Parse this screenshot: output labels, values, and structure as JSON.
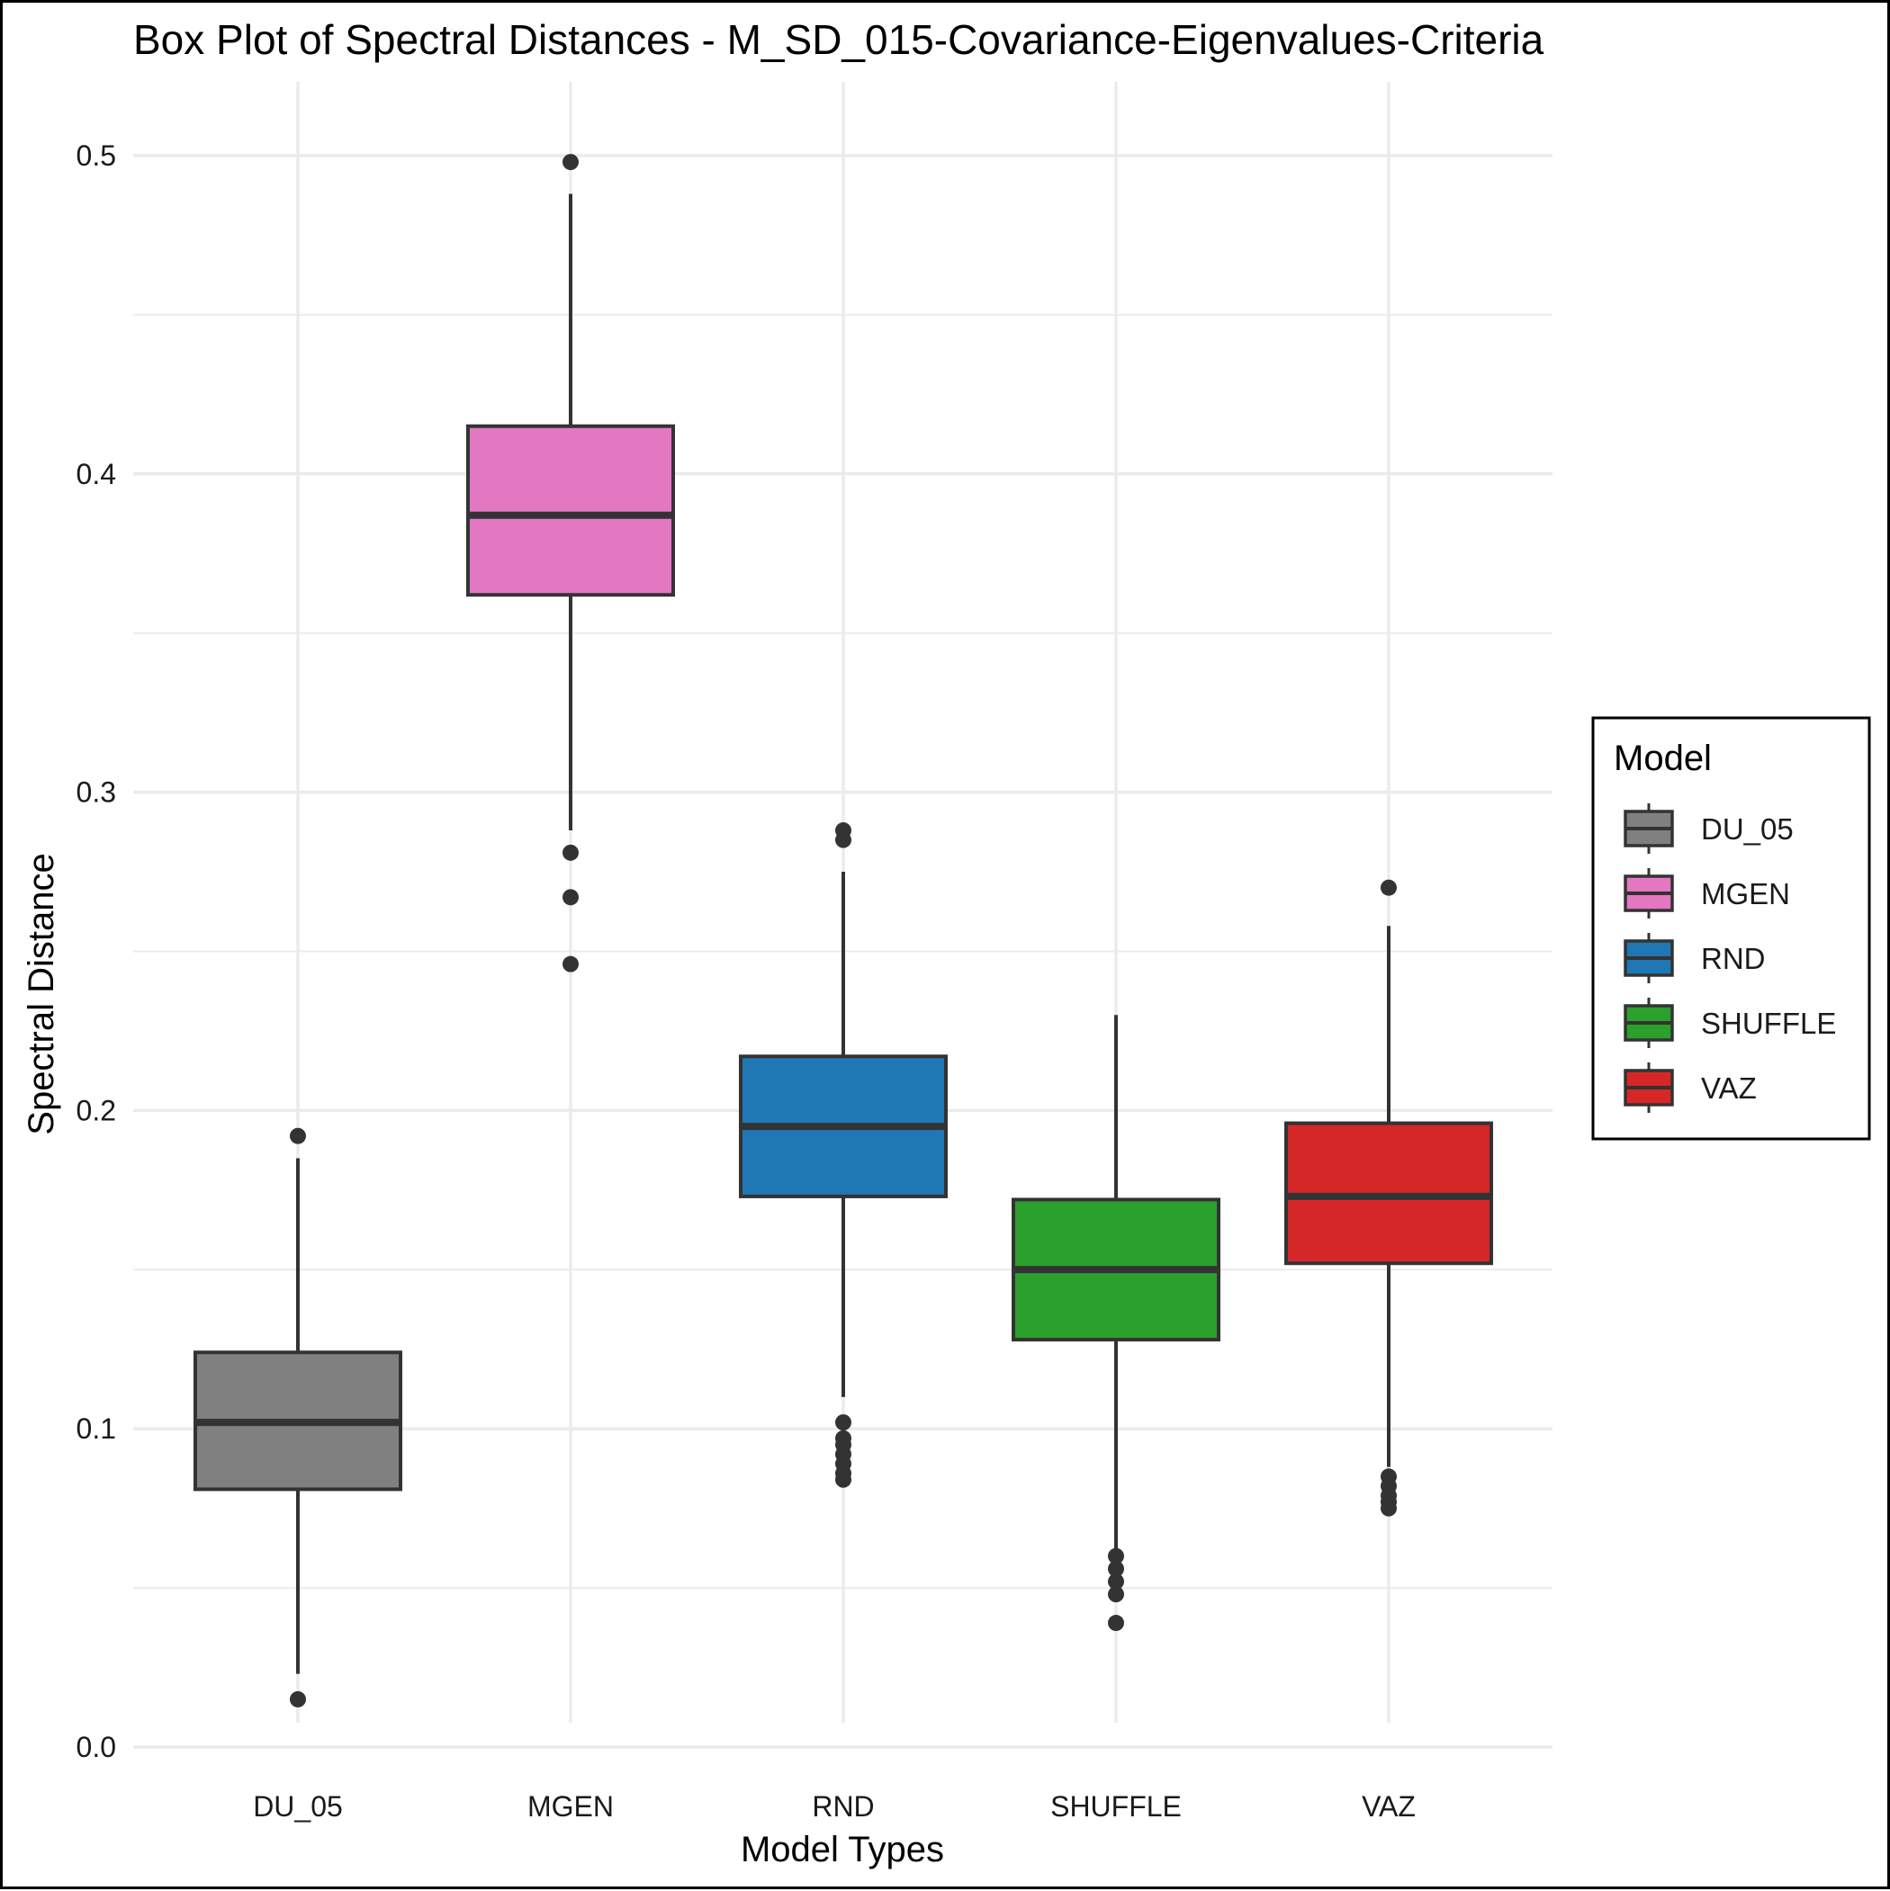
{
  "chart_data": {
    "type": "box",
    "title": "Box Plot of Spectral Distances -  M_SD_015-Covariance-Eigenvalues-Criteria",
    "xlabel": "Model Types",
    "ylabel": "Spectral Distance",
    "ylim": [
      0.0,
      0.5
    ],
    "yticks": [
      0.0,
      0.1,
      0.2,
      0.3,
      0.4,
      0.5
    ],
    "ytick_labels": [
      "0.0",
      "0.1",
      "0.2",
      "0.3",
      "0.4",
      "0.5"
    ],
    "grid": true,
    "categories": [
      "DU_05",
      "MGEN",
      "RND",
      "SHUFFLE",
      "VAZ"
    ],
    "legend": {
      "title": "Model",
      "position": "right"
    },
    "series": [
      {
        "name": "DU_05",
        "color": "#808080",
        "whisker_low": 0.023,
        "q1": 0.081,
        "median": 0.102,
        "q3": 0.124,
        "whisker_high": 0.185,
        "outliers": [
          0.192,
          0.015
        ]
      },
      {
        "name": "MGEN",
        "color": "#e377c2",
        "whisker_low": 0.288,
        "q1": 0.362,
        "median": 0.387,
        "q3": 0.415,
        "whisker_high": 0.488,
        "outliers": [
          0.498,
          0.281,
          0.267,
          0.246
        ]
      },
      {
        "name": "RND",
        "color": "#1f77b4",
        "whisker_low": 0.11,
        "q1": 0.173,
        "median": 0.195,
        "q3": 0.217,
        "whisker_high": 0.275,
        "outliers": [
          0.288,
          0.285,
          0.102,
          0.097,
          0.095,
          0.092,
          0.089,
          0.086,
          0.084
        ]
      },
      {
        "name": "SHUFFLE",
        "color": "#2ca02c",
        "whisker_low": 0.062,
        "q1": 0.128,
        "median": 0.15,
        "q3": 0.172,
        "whisker_high": 0.23,
        "outliers": [
          0.06,
          0.056,
          0.052,
          0.048,
          0.039
        ]
      },
      {
        "name": "VAZ",
        "color": "#d62728",
        "whisker_low": 0.088,
        "q1": 0.152,
        "median": 0.173,
        "q3": 0.196,
        "whisker_high": 0.258,
        "outliers": [
          0.27,
          0.085,
          0.082,
          0.079,
          0.077,
          0.075
        ]
      }
    ]
  }
}
